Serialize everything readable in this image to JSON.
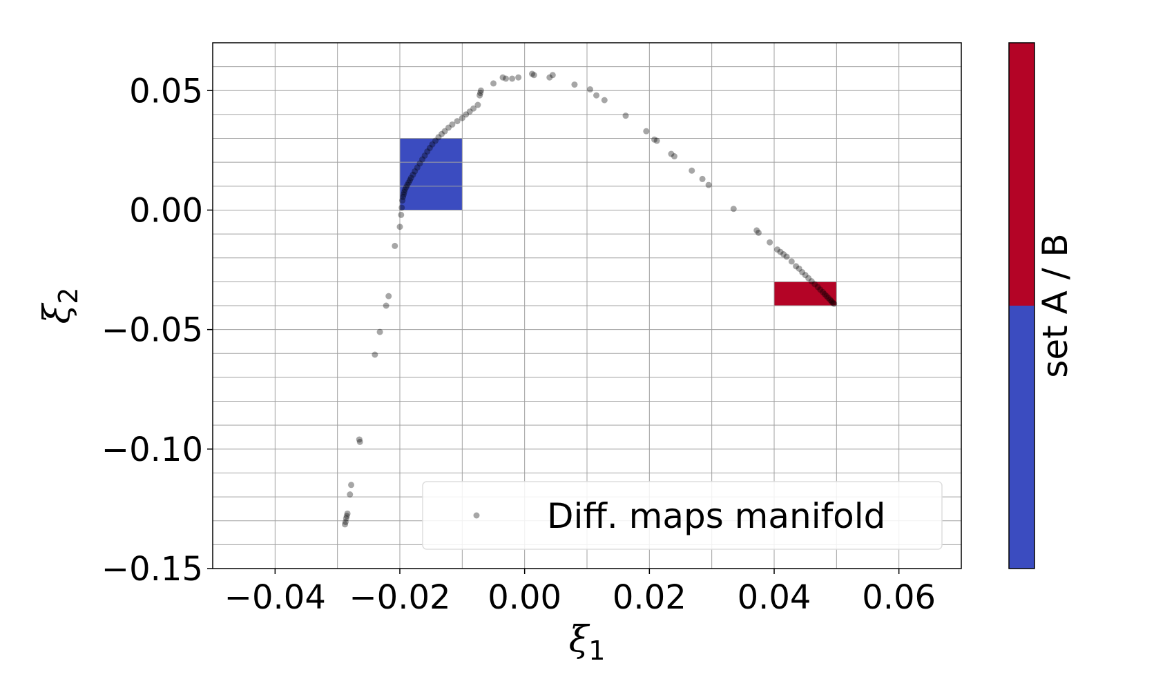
{
  "chart_data": {
    "type": "scatter",
    "xlabel": "ξ",
    "xlabel_sub": "1",
    "ylabel": "ξ",
    "ylabel_sub": "2",
    "xlim": [
      -0.05,
      0.07
    ],
    "ylim": [
      -0.15,
      0.07
    ],
    "xticks": [
      -0.04,
      -0.02,
      0.0,
      0.02,
      0.04,
      0.06
    ],
    "xtick_labels": [
      "−0.04",
      "−0.02",
      "0.00",
      "0.02",
      "0.04",
      "0.06"
    ],
    "yticks": [
      -0.15,
      -0.1,
      -0.05,
      0.0,
      0.05
    ],
    "ytick_labels": [
      "−0.15",
      "−0.10",
      "−0.05",
      "0.00",
      "0.05"
    ],
    "grid": true,
    "grid_minor_y": true,
    "legend": {
      "label": "Diff. maps manifold",
      "placement": "lower-right"
    },
    "colorbar": {
      "label": "set A / B",
      "colors": [
        "#3b4cc0",
        "#b40426"
      ],
      "split_fraction_from_bottom": 0.5
    },
    "regions": [
      {
        "name": "set A",
        "color": "#3b4cc0",
        "x": [
          -0.02,
          -0.01
        ],
        "y": [
          0.0,
          0.03
        ]
      },
      {
        "name": "set B",
        "color": "#b40426",
        "x": [
          0.04,
          0.05
        ],
        "y": [
          -0.04,
          -0.03
        ]
      }
    ],
    "series": [
      {
        "marker_color": "#000000",
        "points": [
          [
            -0.0288,
            -0.1315
          ],
          [
            -0.0287,
            -0.1305
          ],
          [
            -0.0286,
            -0.129
          ],
          [
            -0.0285,
            -0.128
          ],
          [
            -0.0284,
            -0.127
          ],
          [
            -0.028,
            -0.119
          ],
          [
            -0.0278,
            -0.115
          ],
          [
            -0.0265,
            -0.096
          ],
          [
            -0.0264,
            -0.097
          ],
          [
            -0.024,
            -0.0605
          ],
          [
            -0.0232,
            -0.051
          ],
          [
            -0.0222,
            -0.04
          ],
          [
            -0.0218,
            -0.036
          ],
          [
            -0.0208,
            -0.015
          ],
          [
            -0.02,
            -0.007
          ],
          [
            -0.0198,
            -0.002
          ],
          [
            -0.0197,
            0.001
          ],
          [
            -0.0196,
            0.004
          ],
          [
            -0.0195,
            0.0055
          ],
          [
            -0.0194,
            0.0065
          ],
          [
            -0.0193,
            0.0075
          ],
          [
            -0.0192,
            0.0085
          ],
          [
            -0.019,
            0.0095
          ],
          [
            -0.0188,
            0.0105
          ],
          [
            -0.0186,
            0.0115
          ],
          [
            -0.0184,
            0.0125
          ],
          [
            -0.0182,
            0.0135
          ],
          [
            -0.0179,
            0.0148
          ],
          [
            -0.0176,
            0.0162
          ],
          [
            -0.0172,
            0.0178
          ],
          [
            -0.0168,
            0.0195
          ],
          [
            -0.0164,
            0.0212
          ],
          [
            -0.016,
            0.0228
          ],
          [
            -0.0156,
            0.0245
          ],
          [
            -0.0152,
            0.026
          ],
          [
            -0.0148,
            0.0275
          ],
          [
            -0.0143,
            0.029
          ],
          [
            -0.0138,
            0.0305
          ],
          [
            -0.0133,
            0.0318
          ],
          [
            -0.0128,
            0.033
          ],
          [
            -0.0122,
            0.0345
          ],
          [
            -0.0116,
            0.0358
          ],
          [
            -0.0108,
            0.0372
          ],
          [
            -0.01,
            0.0385
          ],
          [
            -0.0094,
            0.04
          ],
          [
            -0.0088,
            0.0412
          ],
          [
            -0.0082,
            0.0425
          ],
          [
            -0.0075,
            0.044
          ],
          [
            -0.0072,
            0.048
          ],
          [
            -0.0071,
            0.049
          ],
          [
            -0.007,
            0.05
          ],
          [
            -0.005,
            0.053
          ],
          [
            -0.0035,
            0.0555
          ],
          [
            -0.003,
            0.055
          ],
          [
            -0.002,
            0.055
          ],
          [
            -0.001,
            0.0555
          ],
          [
            0.0012,
            0.057
          ],
          [
            0.0015,
            0.0565
          ],
          [
            0.0045,
            0.0565
          ],
          [
            0.004,
            0.0555
          ],
          [
            0.008,
            0.0525
          ],
          [
            0.0105,
            0.0505
          ],
          [
            0.0115,
            0.048
          ],
          [
            0.0128,
            0.046
          ],
          [
            0.0162,
            0.0395
          ],
          [
            0.0195,
            0.033
          ],
          [
            0.0208,
            0.0295
          ],
          [
            0.0212,
            0.029
          ],
          [
            0.0235,
            0.0235
          ],
          [
            0.024,
            0.0225
          ],
          [
            0.0268,
            0.0165
          ],
          [
            0.0285,
            0.013
          ],
          [
            0.0295,
            0.0105
          ],
          [
            0.0335,
            0.0005
          ],
          [
            0.0372,
            -0.0085
          ],
          [
            0.0375,
            -0.0095
          ],
          [
            0.0393,
            -0.0135
          ],
          [
            0.0405,
            -0.0165
          ],
          [
            0.041,
            -0.0175
          ],
          [
            0.0415,
            -0.0185
          ],
          [
            0.042,
            -0.0195
          ],
          [
            0.0428,
            -0.0215
          ],
          [
            0.0435,
            -0.0235
          ],
          [
            0.044,
            -0.0245
          ],
          [
            0.0445,
            -0.026
          ],
          [
            0.045,
            -0.0272
          ],
          [
            0.0455,
            -0.0285
          ],
          [
            0.046,
            -0.0298
          ],
          [
            0.0465,
            -0.031
          ],
          [
            0.047,
            -0.0322
          ],
          [
            0.0474,
            -0.0333
          ],
          [
            0.0478,
            -0.0343
          ],
          [
            0.0481,
            -0.0352
          ],
          [
            0.0484,
            -0.036
          ],
          [
            0.0487,
            -0.0368
          ],
          [
            0.049,
            -0.0376
          ],
          [
            0.0492,
            -0.0382
          ],
          [
            0.0494,
            -0.0388
          ],
          [
            0.0496,
            -0.0392
          ]
        ]
      }
    ]
  }
}
